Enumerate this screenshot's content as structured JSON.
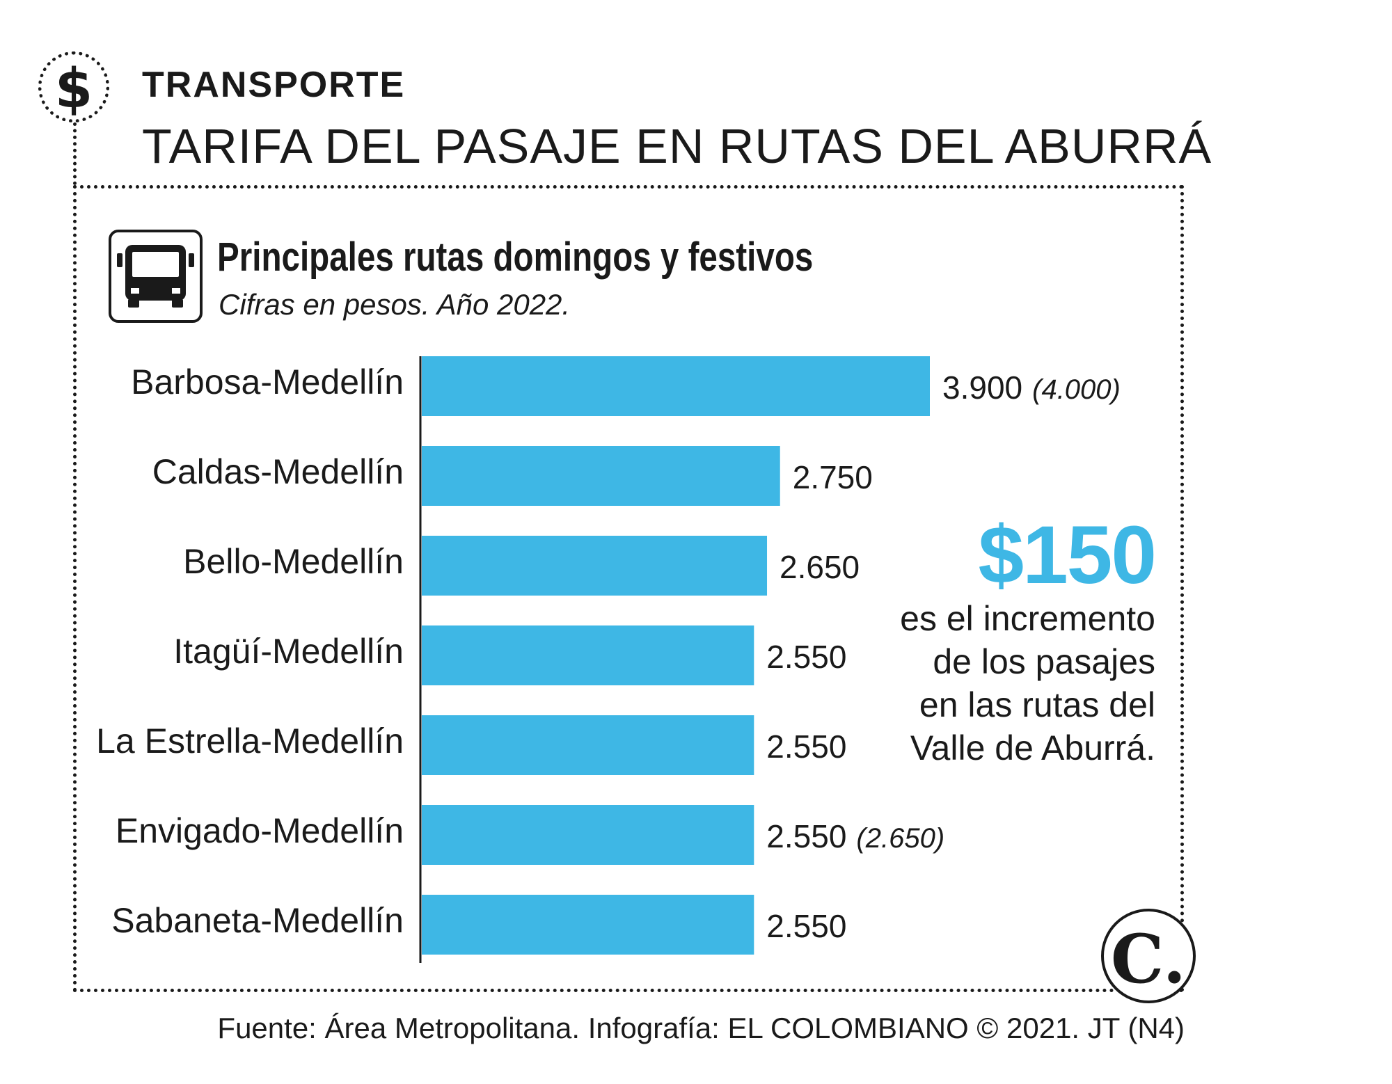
{
  "header": {
    "section_label": "TRANSPORTE",
    "headline": "TARIFA DEL PASAJE EN RUTAS DEL ABURRÁ",
    "money_icon_glyph": "$"
  },
  "chart_data": {
    "type": "bar",
    "orientation": "horizontal",
    "title": "Principales rutas domingos y festivos",
    "subtitle": "Cifras en pesos. Año 2022.",
    "icon": "bus-icon",
    "bar_color": "#3eb7e5",
    "categories": [
      "Barbosa-Medellín",
      "Caldas-Medellín",
      "Bello-Medellín",
      "Itagüí-Medellín",
      "La Estrella-Medellín",
      "Envigado-Medellín",
      "Sabaneta-Medellín"
    ],
    "values": [
      3900,
      2750,
      2650,
      2550,
      2550,
      2550,
      2550
    ],
    "value_labels": [
      "3.900",
      "2.750",
      "2.650",
      "2.550",
      "2.550",
      "2.550",
      "2.550"
    ],
    "secondary_labels": [
      "(4.000)",
      "",
      "",
      "",
      "",
      "(2.650)",
      ""
    ],
    "xlim": [
      0,
      4000
    ],
    "grid": false
  },
  "callout": {
    "value": "$150",
    "text": "es el incremento\nde los pasajes\nen las rutas del\nValle de Aburrá."
  },
  "logo": {
    "glyph": "C."
  },
  "footer": {
    "source": "Fuente: Área Metropolitana. Infografía: EL COLOMBIANO © 2021. JT (N4)"
  }
}
